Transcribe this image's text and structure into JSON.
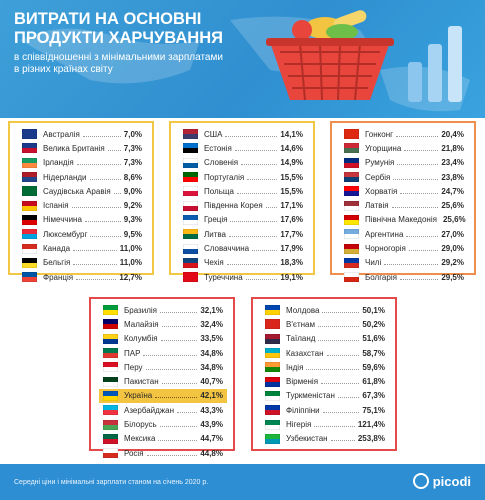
{
  "header": {
    "title_line1": "ВИТРАТИ НА ОСНОВНІ",
    "title_line2": "ПРОДУКТИ ХАРЧУВАННЯ",
    "subtitle_line1": "в співвідношенні з мінімальними зарплатами",
    "subtitle_line2": "в різних країнах світу"
  },
  "colors": {
    "header_bg": "#3399dd",
    "card1_border": "#f2c744",
    "card2_border": "#f2c744",
    "card3_border": "#ef8f4e",
    "card4_border": "#e34b4b",
    "card5_border": "#e34b4b",
    "highlight": "#f3c442",
    "footer_bg": "#2e8ed3"
  },
  "groups": [
    {
      "rows": [
        {
          "name": "Австралія",
          "value": "7,0%"
        },
        {
          "name": "Велика Британія",
          "value": "7,3%"
        },
        {
          "name": "Ірландія",
          "value": "7,3%"
        },
        {
          "name": "Нідерланди",
          "value": "8,6%"
        },
        {
          "name": "Саудівська Аравія",
          "value": "9,0%"
        },
        {
          "name": "Іспанія",
          "value": "9,2%"
        },
        {
          "name": "Німеччина",
          "value": "9,3%"
        },
        {
          "name": "Люксембург",
          "value": "9,5%"
        },
        {
          "name": "Канада",
          "value": "11,0%"
        },
        {
          "name": "Бельгія",
          "value": "11,0%"
        },
        {
          "name": "Франція",
          "value": "12,7%"
        }
      ]
    },
    {
      "rows": [
        {
          "name": "США",
          "value": "14,1%"
        },
        {
          "name": "Естонія",
          "value": "14,6%"
        },
        {
          "name": "Словенія",
          "value": "14,9%"
        },
        {
          "name": "Португалія",
          "value": "15,5%"
        },
        {
          "name": "Польща",
          "value": "15,5%"
        },
        {
          "name": "Південна Корея",
          "value": "17,1%"
        },
        {
          "name": "Греція",
          "value": "17,6%"
        },
        {
          "name": "Литва",
          "value": "17,7%"
        },
        {
          "name": "Словаччина",
          "value": "17,9%"
        },
        {
          "name": "Чехія",
          "value": "18,3%"
        },
        {
          "name": "Туреччина",
          "value": "19,1%"
        }
      ]
    },
    {
      "rows": [
        {
          "name": "Гонконг",
          "value": "20,4%"
        },
        {
          "name": "Угорщина",
          "value": "21,8%"
        },
        {
          "name": "Румунія",
          "value": "23,4%"
        },
        {
          "name": "Сербія",
          "value": "23,8%"
        },
        {
          "name": "Хорватія",
          "value": "24,7%"
        },
        {
          "name": "Латвія",
          "value": "25,6%"
        },
        {
          "name": "Північна Македонія",
          "value": "25,6%"
        },
        {
          "name": "Аргентина",
          "value": "27,0%"
        },
        {
          "name": "Чорногорія",
          "value": "29,0%"
        },
        {
          "name": "Чилі",
          "value": "29,2%"
        },
        {
          "name": "Болгарія",
          "value": "29,5%"
        }
      ]
    },
    {
      "rows": [
        {
          "name": "Бразилія",
          "value": "32,1%"
        },
        {
          "name": "Малайзія",
          "value": "32,4%"
        },
        {
          "name": "Колумбія",
          "value": "33,5%"
        },
        {
          "name": "ПАР",
          "value": "34,8%"
        },
        {
          "name": "Перу",
          "value": "34,8%"
        },
        {
          "name": "Пакистан",
          "value": "40,7%"
        },
        {
          "name": "Україна",
          "value": "42,1%"
        },
        {
          "name": "Азербайджан",
          "value": "43,3%"
        },
        {
          "name": "Білорусь",
          "value": "43,9%"
        },
        {
          "name": "Мексика",
          "value": "44,7%"
        },
        {
          "name": "Росія",
          "value": "44,8%"
        }
      ]
    },
    {
      "rows": [
        {
          "name": "Молдова",
          "value": "50,1%"
        },
        {
          "name": "В'єтнам",
          "value": "50,2%"
        },
        {
          "name": "Таїланд",
          "value": "51,6%"
        },
        {
          "name": "Казахстан",
          "value": "58,7%"
        },
        {
          "name": "Індія",
          "value": "59,6%"
        },
        {
          "name": "Вірменія",
          "value": "61,8%"
        },
        {
          "name": "Туркменістан",
          "value": "67,3%"
        },
        {
          "name": "Філіппіни",
          "value": "75,1%"
        },
        {
          "name": "Нігерія",
          "value": "121,4%"
        },
        {
          "name": "Узбекистан",
          "value": "253,8%"
        }
      ]
    }
  ],
  "footer": {
    "note": "Середні ціни і мінімальні зарплати станом на січень 2020 р.",
    "logo_text": "picodi"
  }
}
